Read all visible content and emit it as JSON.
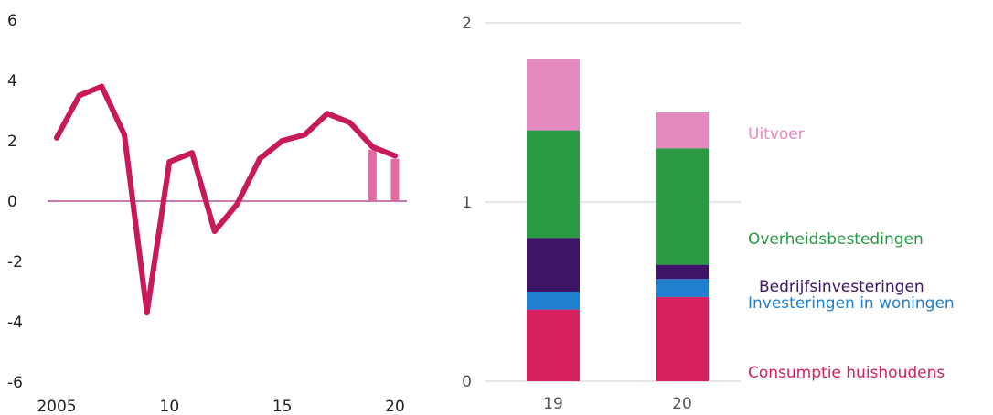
{
  "chart_data": [
    {
      "type": "line",
      "x": [
        2005,
        2006,
        2007,
        2008,
        2009,
        2010,
        2011,
        2012,
        2013,
        2014,
        2015,
        2016,
        2017,
        2018,
        2019,
        2020
      ],
      "series": [
        {
          "values": [
            2.1,
            3.5,
            3.8,
            2.2,
            -3.7,
            1.3,
            1.6,
            -1.0,
            -0.1,
            1.4,
            2.0,
            2.2,
            2.9,
            2.6,
            1.8,
            1.5
          ]
        }
      ],
      "forecast_bars": [
        {
          "x": 2019,
          "value": 1.7
        },
        {
          "x": 2020,
          "value": 1.4
        }
      ],
      "ylim": [
        -6,
        6
      ],
      "y_ticks": [
        "6",
        "4",
        "2",
        "0",
        "-2",
        "-4",
        "-6"
      ],
      "x_ticks": [
        "2005",
        "10",
        "15",
        "20"
      ],
      "zero_line": true,
      "colors": {
        "line": "#c8195a",
        "forecast": "#e46aa4",
        "zero": "#c97bb0",
        "tick_text": "#222222"
      }
    },
    {
      "type": "bar",
      "stacked": true,
      "categories": [
        "19",
        "20"
      ],
      "series": [
        {
          "name": "Consumptie huishoudens",
          "values": [
            0.4,
            0.47
          ],
          "color": "#d6205f"
        },
        {
          "name": "Investeringen in woningen",
          "values": [
            0.1,
            0.1
          ],
          "color": "#1f7fd0"
        },
        {
          "name": "Bedrijfsinvesteringen",
          "values": [
            0.3,
            0.08
          ],
          "color": "#3d1466"
        },
        {
          "name": "Overheidsbestedingen",
          "values": [
            0.6,
            0.65
          ],
          "color": "#2a9a45"
        },
        {
          "name": "Uitvoer",
          "values": [
            0.4,
            0.2
          ],
          "color": "#e58ac0"
        }
      ],
      "ylim": [
        0,
        2
      ],
      "y_ticks": [
        "2",
        "1",
        "0"
      ],
      "grid": true,
      "legend_placement": "right",
      "colors": {
        "grid": "#e6e6e6",
        "tick_text": "#555555"
      }
    }
  ]
}
